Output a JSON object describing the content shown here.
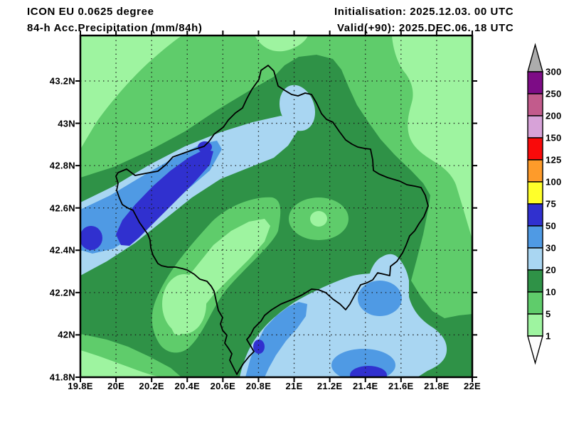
{
  "header": {
    "model": "ICON EU 0.0625 degree",
    "product": "84-h Acc.Precipitation (mm/84h)",
    "init_label": "Initialisation:",
    "init_value": "2025.12.03. 00 UTC",
    "valid_label": "Valid(+90):",
    "valid_value": "2025.DEC.06. 18 UTC"
  },
  "axes": {
    "lat_labels": [
      "43.2N",
      "43N",
      "42.8N",
      "42.6N",
      "42.4N",
      "42.2N",
      "42N",
      "41.8N"
    ],
    "lon_labels": [
      "19.8E",
      "20E",
      "20.2E",
      "20.4E",
      "20.6E",
      "20.8E",
      "21E",
      "21.2E",
      "21.4E",
      "21.6E",
      "21.8E",
      "22E"
    ]
  },
  "colorbar": {
    "levels": [
      "300",
      "250",
      "200",
      "150",
      "125",
      "100",
      "75",
      "50",
      "30",
      "20",
      "10",
      "5",
      "1"
    ],
    "segment_colors": [
      "#7D0C86",
      "#C25B8C",
      "#D7A2D8",
      "#F90A0A",
      "#FE9B2A",
      "#FFFF2A",
      "#3030CF",
      "#4F9AE4",
      "#A9D6F2",
      "#2F9247",
      "#5FCC6B",
      "#9EF4A0"
    ],
    "overflow_color": "#ACACAC",
    "underflow_color": "#FCFCFC"
  },
  "palette": {
    "lt_green": "#9EF4A0",
    "md_green": "#5FCC6B",
    "dk_green": "#2F9247",
    "lt_blue": "#A9D6F2",
    "md_blue": "#4F9AE4",
    "dk_blue": "#3030CF",
    "border_line": "#000000",
    "grid_dots": "#1A1A1A",
    "frame": "#000000"
  },
  "units": "mm/84h"
}
